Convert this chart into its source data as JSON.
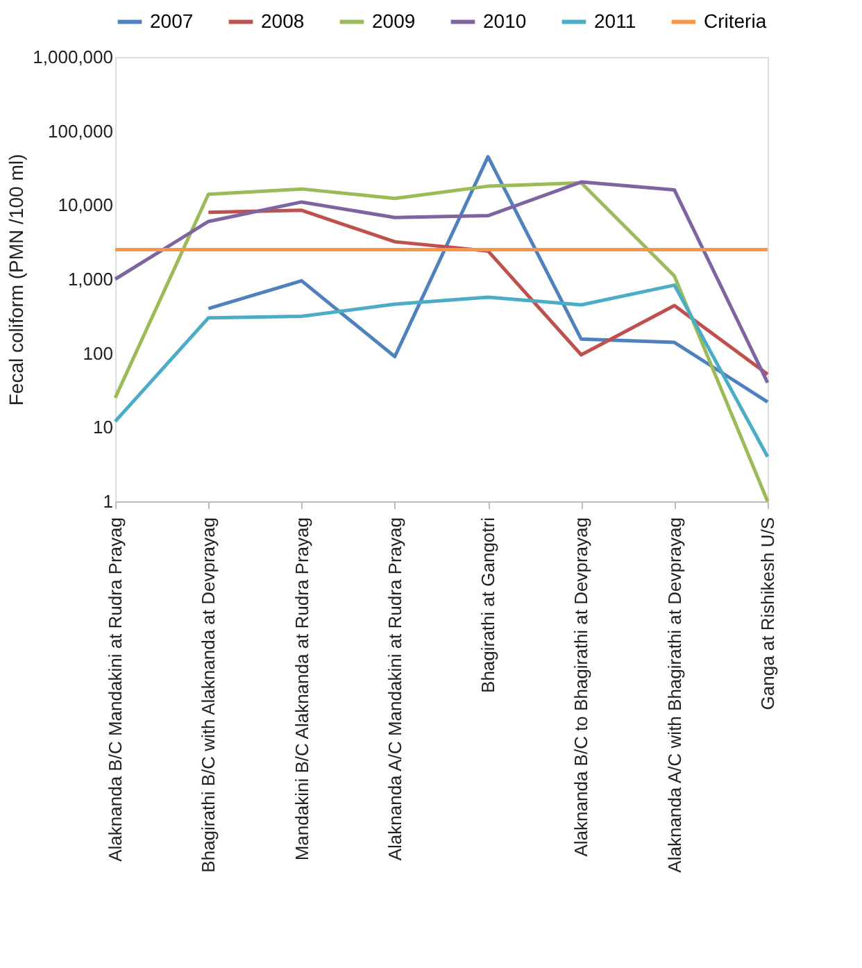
{
  "chart_data": {
    "type": "line",
    "ylabel": "Fecal coliform (PMN /100 ml)",
    "categories": [
      "Alaknanda B/C Mandakini at Rudra Prayag",
      "Bhagirathi B/C with Alaknanda at Devprayag",
      "Mandakini B/C Alaknanda at Rudra Prayag",
      "Alaknanda A/C Mandakini at Rudra Prayag",
      "Bhagirathi at Gangotri",
      "Alaknanda B/C to Bhagirathi at Devprayag",
      "Alaknanda A/C with Bhagirathi at Devprayag",
      "Ganga at Rishikesh U/S"
    ],
    "series": [
      {
        "name": "2007",
        "color": "#4f81bd",
        "values": [
          null,
          400,
          950,
          90,
          45000,
          155,
          140,
          22
        ]
      },
      {
        "name": "2008",
        "color": "#c0504d",
        "values": [
          null,
          8000,
          8500,
          3200,
          2400,
          95,
          440,
          52
        ]
      },
      {
        "name": "2009",
        "color": "#9bbb59",
        "values": [
          25,
          14000,
          16500,
          12300,
          18000,
          20000,
          1100,
          1
        ]
      },
      {
        "name": "2010",
        "color": "#8064a2",
        "values": [
          1000,
          6000,
          11000,
          6800,
          7200,
          20500,
          16000,
          40
        ]
      },
      {
        "name": "2011",
        "color": "#4bacc6",
        "values": [
          12,
          300,
          315,
          460,
          570,
          450,
          830,
          4
        ]
      },
      {
        "name": "Criteria",
        "color": "#f79646",
        "values": [
          2500,
          2500,
          2500,
          2500,
          2500,
          2500,
          2500,
          2500
        ]
      }
    ],
    "log": "y",
    "ylim": [
      1,
      1000000
    ],
    "yticks": [
      1,
      10,
      100,
      {
        "value": 1000,
        "label": "1,000"
      },
      {
        "value": 10000,
        "label": "10,000"
      },
      {
        "value": 100000,
        "label": "100,000"
      },
      {
        "value": 1000000,
        "label": "1,000,000"
      }
    ],
    "grid": false,
    "legend": "top",
    "marker": "none",
    "line_style": "solid"
  }
}
